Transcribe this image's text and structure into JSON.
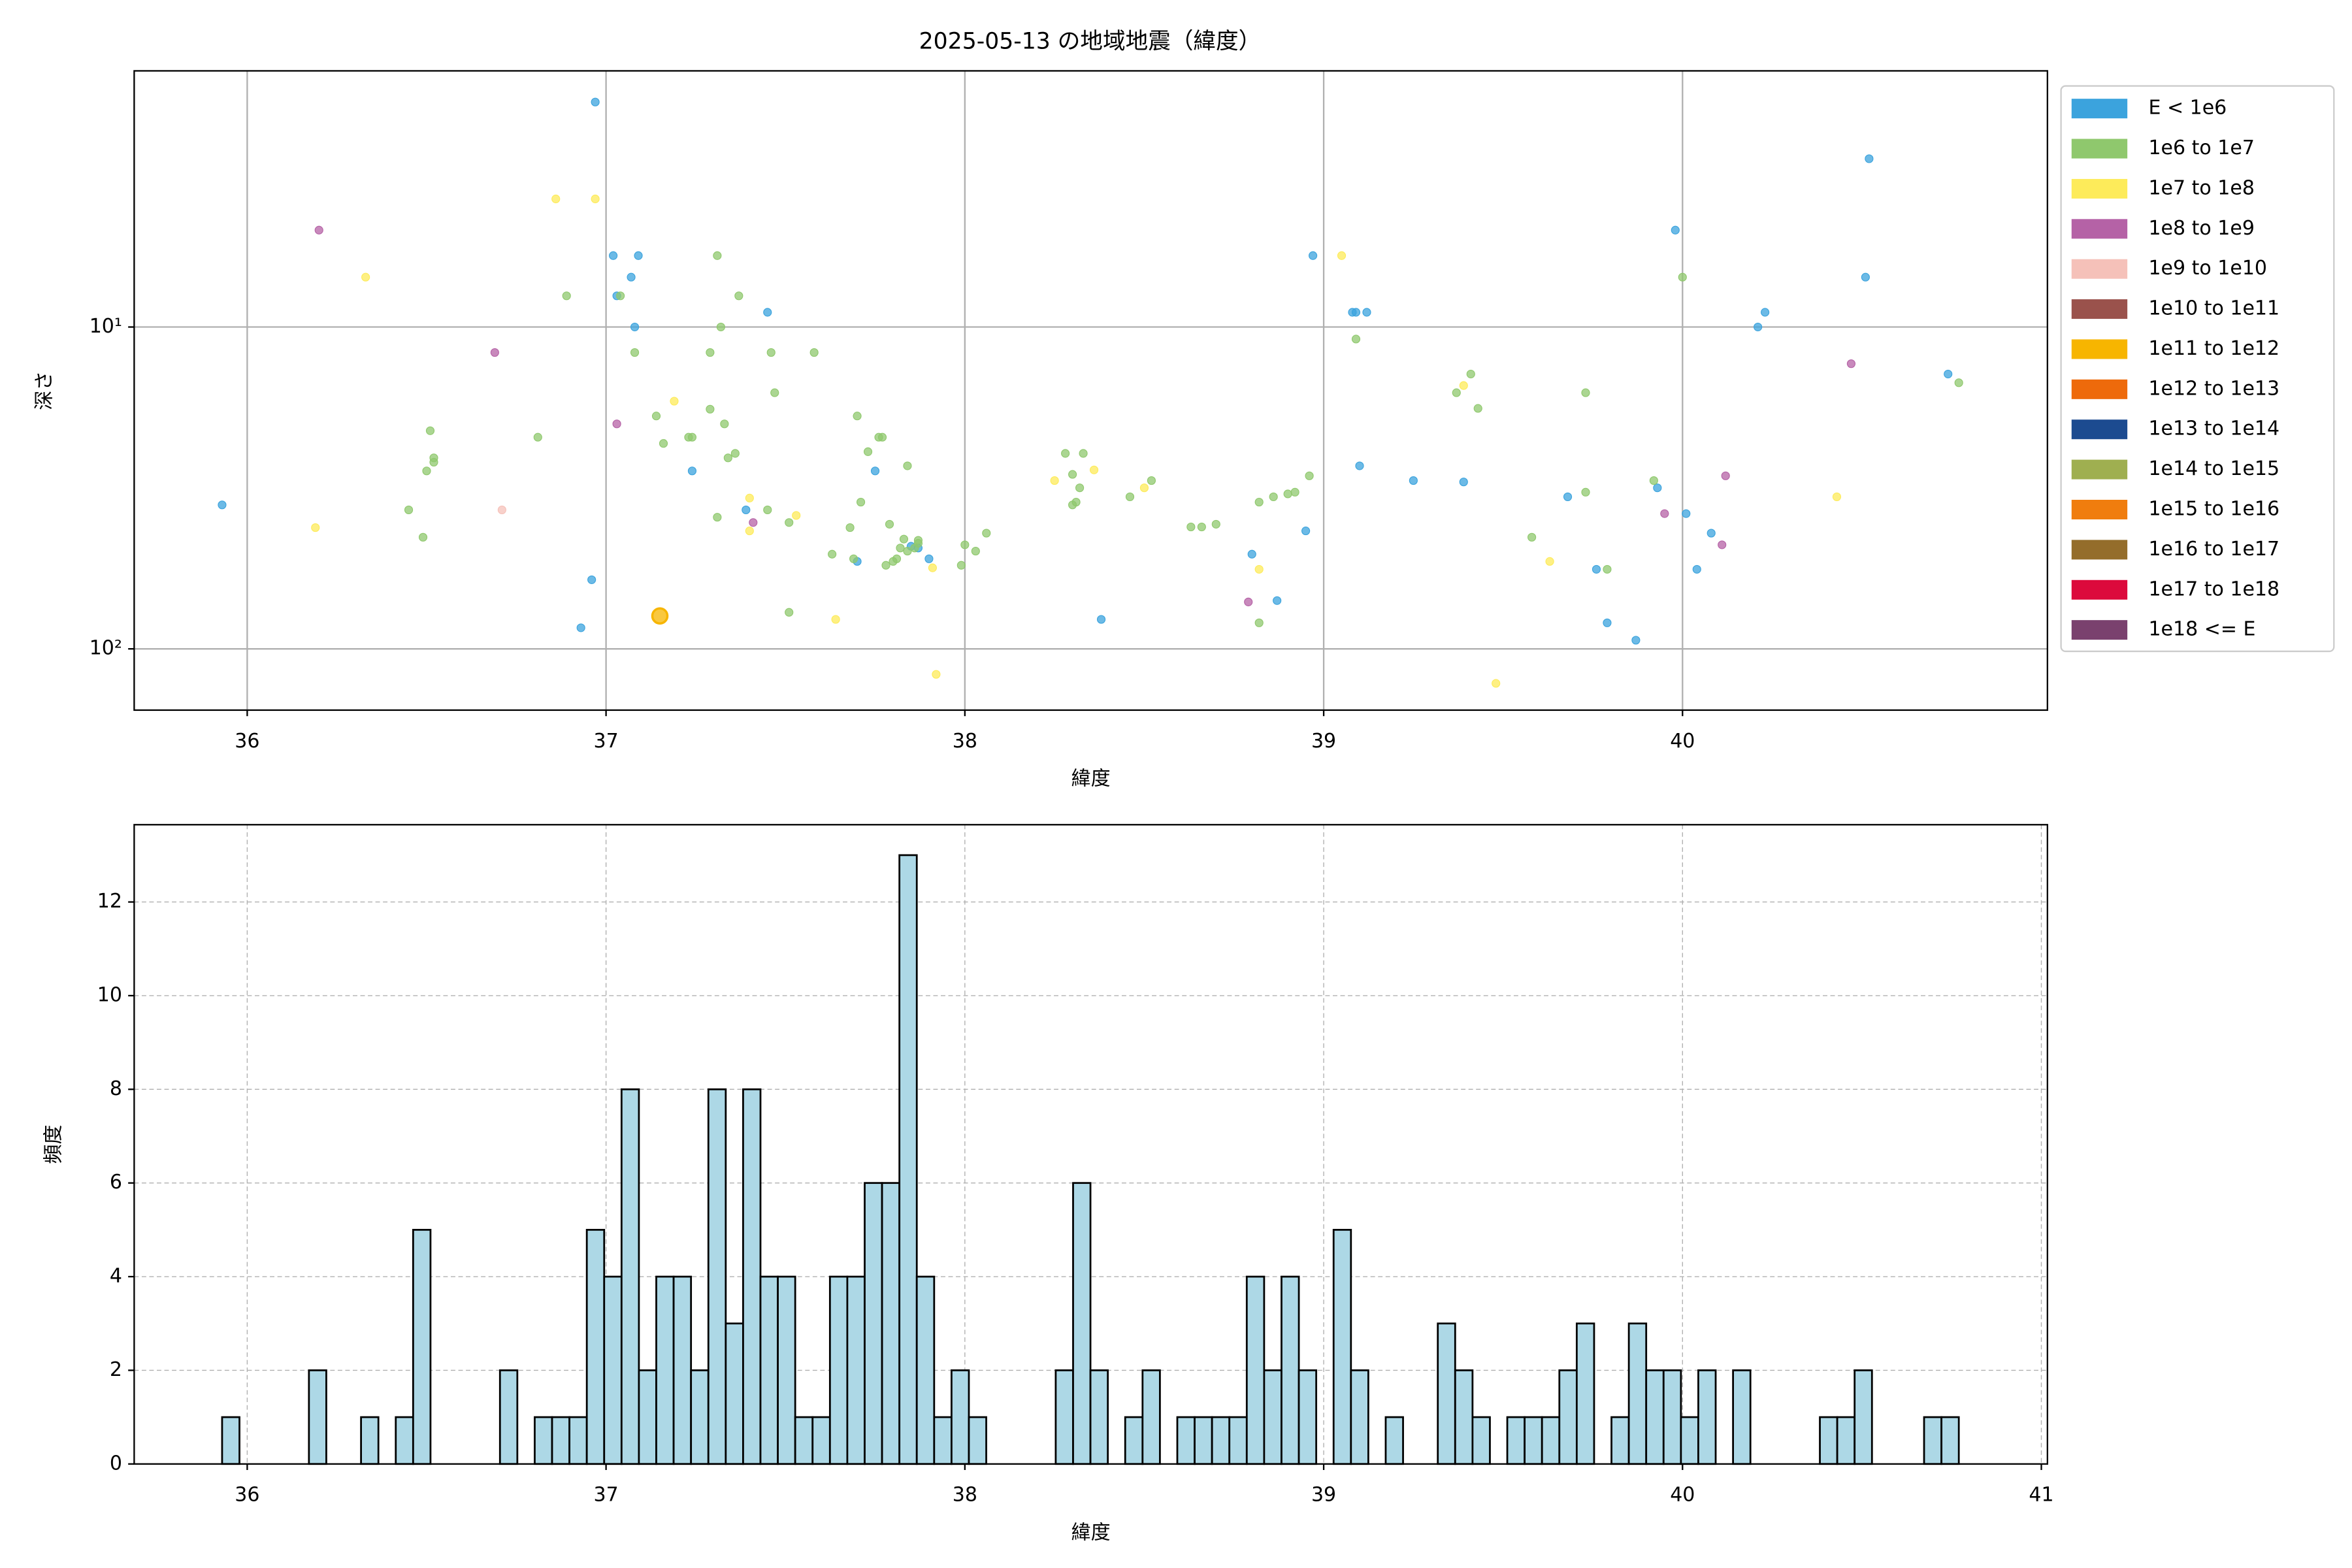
{
  "chart_data": [
    {
      "type": "scatter",
      "title": "2025-05-13 の地域地震（緯度）",
      "xlabel": "緯度",
      "ylabel": "深さ",
      "xlim": [
        35.685,
        41.017
      ],
      "xticks": [
        36,
        37,
        38,
        39,
        40
      ],
      "ylim": [
        155,
        1.6
      ],
      "yscale": "log",
      "yticks": [
        {
          "value": 10,
          "label": "10¹"
        },
        {
          "value": 100,
          "label": "10²"
        }
      ],
      "grid": true,
      "grid_linestyle": "solid",
      "legend": "outside right",
      "series": [
        {
          "name": "E < 1e6",
          "color": "#3ba3dd",
          "x": [
            35.93,
            36.93,
            36.96,
            36.97,
            37.02,
            37.03,
            37.07,
            37.08,
            37.09,
            37.24,
            37.39,
            37.45,
            37.7,
            37.75,
            37.85,
            37.87,
            37.9,
            38.38,
            38.8,
            38.87,
            38.95,
            38.97,
            39.08,
            39.09,
            39.1,
            39.12,
            39.25,
            39.39,
            39.68,
            39.76,
            39.79,
            39.87,
            39.93,
            39.98,
            40.01,
            40.04,
            40.08,
            40.21,
            40.23,
            40.51,
            40.52,
            40.74
          ],
          "values": [
            35.7,
            86,
            61,
            2.0,
            6,
            8,
            7,
            10,
            6,
            28,
            37,
            9,
            53.5,
            28,
            48,
            48.6,
            52.5,
            81,
            50.8,
            70.8,
            43,
            6,
            9,
            9,
            27,
            9,
            30,
            30.3,
            33.7,
            56.6,
            83,
            94,
            31.6,
            5,
            38,
            56.6,
            43.7,
            10,
            9,
            7,
            3,
            14
          ]
        },
        {
          "name": "1e6 to 1e7",
          "color": "#8fc86d",
          "x": [
            36.45,
            36.49,
            36.5,
            36.51,
            36.52,
            36.52,
            36.81,
            36.89,
            37.04,
            37.08,
            37.14,
            37.16,
            37.23,
            37.24,
            37.29,
            37.29,
            37.31,
            37.31,
            37.32,
            37.33,
            37.34,
            37.36,
            37.37,
            37.45,
            37.46,
            37.47,
            37.51,
            37.51,
            37.58,
            37.63,
            37.68,
            37.69,
            37.7,
            37.71,
            37.73,
            37.76,
            37.77,
            37.78,
            37.79,
            37.8,
            37.81,
            37.82,
            37.83,
            37.84,
            37.84,
            37.86,
            37.87,
            37.87,
            37.99,
            38.0,
            38.03,
            38.06,
            38.28,
            38.3,
            38.3,
            38.31,
            38.32,
            38.33,
            38.46,
            38.52,
            38.63,
            38.66,
            38.7,
            38.82,
            38.82,
            38.86,
            38.9,
            38.92,
            38.96,
            39.09,
            39.37,
            39.41,
            39.43,
            39.58,
            39.73,
            39.73,
            39.79,
            39.92,
            40.0,
            40.77
          ],
          "values": [
            37,
            45,
            28,
            21,
            25.5,
            26.3,
            22,
            8,
            8,
            12,
            18.9,
            23,
            22,
            22,
            18,
            12,
            6,
            39,
            10,
            20,
            25.5,
            24.7,
            8,
            37,
            12,
            16,
            40.5,
            77,
            12,
            50.8,
            42,
            52.5,
            18.9,
            35,
            24.4,
            22,
            22,
            55,
            41,
            53.5,
            52.5,
            48.6,
            45.6,
            27,
            49.7,
            48.6,
            47,
            46,
            55,
            47.5,
            49.7,
            43.7,
            24.7,
            35.7,
            28.7,
            35,
            31.6,
            24.7,
            33.7,
            30,
            41.8,
            41.8,
            41,
            35,
            83,
            33.7,
            33,
            32.6,
            29,
            10.9,
            16,
            14,
            17.9,
            45,
            16,
            32.6,
            56.6,
            30,
            7,
            14.9
          ]
        },
        {
          "name": "1e7 to 1e8",
          "color": "#fdeb5a",
          "x": [
            36.19,
            36.33,
            36.86,
            36.97,
            37.19,
            37.4,
            37.4,
            37.53,
            37.64,
            37.91,
            37.92,
            38.25,
            38.36,
            38.5,
            38.82,
            39.05,
            39.39,
            39.48,
            39.63,
            40.43
          ],
          "values": [
            42,
            7,
            4,
            4,
            17,
            34,
            43,
            38.5,
            81,
            56,
            120,
            30,
            27.8,
            31.6,
            56.6,
            6,
            15.2,
            128,
            53.5,
            33.7
          ]
        },
        {
          "name": "1e8 to 1e9",
          "color": "#b562a6",
          "x": [
            36.2,
            36.69,
            37.03,
            37.41,
            38.79,
            39.95,
            40.11,
            40.12,
            40.47
          ],
          "values": [
            5,
            12,
            20,
            40.5,
            71.5,
            38,
            47.5,
            29,
            13
          ]
        },
        {
          "name": "1e9 to 1e10",
          "color": "#f5c1b9",
          "x": [
            36.71
          ],
          "values": [
            37
          ]
        },
        {
          "name": "1e10 to 1e11",
          "color": "#9a524c",
          "x": [],
          "values": []
        },
        {
          "name": "1e11 to 1e12",
          "color": "#f7b500",
          "x": [
            37.15
          ],
          "values": [
            79
          ]
        },
        {
          "name": "1e12 to 1e13",
          "color": "#ee6a0b",
          "x": [],
          "values": []
        },
        {
          "name": "1e13 to 1e14",
          "color": "#1c4b90",
          "x": [],
          "values": []
        },
        {
          "name": "1e14 to 1e15",
          "color": "#9faf50",
          "x": [],
          "values": []
        },
        {
          "name": "1e15 to 1e16",
          "color": "#f07d0e",
          "x": [],
          "values": []
        },
        {
          "name": "1e16 to 1e17",
          "color": "#946d2b",
          "x": [],
          "values": []
        },
        {
          "name": "1e17 to 1e18",
          "color": "#dc0a3c",
          "x": [],
          "values": []
        },
        {
          "name": "1e18 <= E",
          "color": "#7a416e",
          "x": [],
          "values": []
        }
      ]
    },
    {
      "type": "histogram",
      "xlabel": "緯度",
      "ylabel": "頻度",
      "xlim": [
        35.685,
        41.017
      ],
      "xticks": [
        36,
        37,
        38,
        39,
        40,
        41
      ],
      "ylim": [
        0,
        13.65
      ],
      "yticks": [
        0,
        2,
        4,
        6,
        8,
        10,
        12
      ],
      "grid": true,
      "grid_linestyle": "dashed",
      "color": "#add8e6",
      "edgecolor": "#000000",
      "bins": [
        35.93,
        35.9784,
        36.0268,
        36.0752,
        36.1236,
        36.172,
        36.2204,
        36.2688,
        36.3172,
        36.3656,
        36.414,
        36.4624,
        36.5108,
        36.5592,
        36.6076,
        36.656,
        36.7044,
        36.7528,
        36.8012,
        36.8496,
        36.898,
        36.9464,
        36.9948,
        37.0432,
        37.0916,
        37.14,
        37.1884,
        37.2368,
        37.2852,
        37.3336,
        37.382,
        37.4304,
        37.4788,
        37.5272,
        37.5756,
        37.624,
        37.6724,
        37.7208,
        37.7692,
        37.8176,
        37.866,
        37.9144,
        37.9628,
        38.0112,
        38.0596,
        38.108,
        38.1564,
        38.2048,
        38.2532,
        38.3016,
        38.35,
        38.3984,
        38.4468,
        38.4952,
        38.5436,
        38.592,
        38.6404,
        38.6888,
        38.7372,
        38.7856,
        38.834,
        38.8824,
        38.9308,
        38.9792,
        39.0276,
        39.076,
        39.1244,
        39.1728,
        39.2212,
        39.2696,
        39.318,
        39.3664,
        39.4148,
        39.4632,
        39.5116,
        39.56,
        39.6084,
        39.6568,
        39.7052,
        39.7536,
        39.802,
        39.8504,
        39.8988,
        39.9472,
        39.9956,
        40.044,
        40.0924,
        40.1408,
        40.1892,
        40.2376,
        40.286,
        40.3344,
        40.3828,
        40.4312,
        40.4796,
        40.528,
        40.5764,
        40.6248,
        40.6732,
        40.7216,
        40.77
      ],
      "values": [
        1,
        0,
        0,
        0,
        0,
        2,
        0,
        0,
        1,
        0,
        1,
        5,
        0,
        0,
        0,
        0,
        2,
        0,
        1,
        1,
        1,
        5,
        4,
        8,
        2,
        4,
        4,
        2,
        8,
        3,
        8,
        4,
        4,
        1,
        1,
        4,
        4,
        6,
        6,
        13,
        4,
        1,
        2,
        1,
        0,
        0,
        0,
        0,
        2,
        6,
        2,
        0,
        1,
        2,
        0,
        1,
        1,
        1,
        1,
        4,
        2,
        4,
        2,
        0,
        5,
        2,
        0,
        1,
        0,
        0,
        3,
        2,
        1,
        0,
        1,
        1,
        1,
        2,
        3,
        0,
        1,
        3,
        2,
        2,
        1,
        2,
        0,
        2,
        0,
        0,
        0,
        0,
        1,
        1,
        2,
        0,
        0,
        0,
        1,
        1
      ]
    }
  ]
}
